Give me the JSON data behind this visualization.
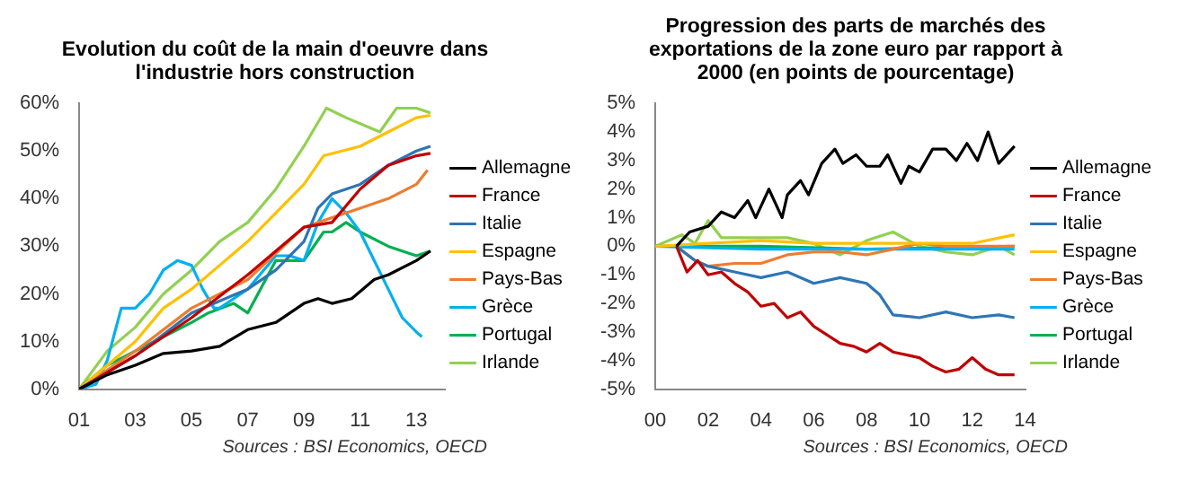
{
  "chart_data": [
    {
      "type": "line",
      "title": "Evolution du coût de la main d'oeuvre dans l'industrie hors construction",
      "annotations": [
        "Sources : BSI Economics, OECD"
      ],
      "legend": "right",
      "marker": "none",
      "grid": false,
      "xlim": [
        2001,
        2014
      ],
      "xticks": [
        {
          "value": 2001,
          "label": "01"
        },
        {
          "value": 2003,
          "label": "03"
        },
        {
          "value": 2005,
          "label": "05"
        },
        {
          "value": 2007,
          "label": "07"
        },
        {
          "value": 2009,
          "label": "09"
        },
        {
          "value": 2011,
          "label": "11"
        },
        {
          "value": 2013,
          "label": "13"
        }
      ],
      "ylim": [
        0,
        60
      ],
      "yticks": [
        {
          "value": 0,
          "label": "0%"
        },
        {
          "value": 10,
          "label": "10%"
        },
        {
          "value": 20,
          "label": "20%"
        },
        {
          "value": 30,
          "label": "30%"
        },
        {
          "value": 40,
          "label": "40%"
        },
        {
          "value": 50,
          "label": "50%"
        },
        {
          "value": 60,
          "label": "60%"
        }
      ],
      "series": [
        {
          "name": "Allemagne",
          "color": "#000000",
          "x": [
            2001,
            2002,
            2003,
            2004,
            2005,
            2006,
            2007,
            2008,
            2009,
            2009.5,
            2010,
            2010.7,
            2011.5,
            2012,
            2013,
            2013.5
          ],
          "values": [
            0,
            3,
            5,
            7.5,
            8,
            9,
            12.5,
            14,
            18,
            19,
            18,
            19,
            23,
            24,
            27,
            29
          ]
        },
        {
          "name": "France",
          "color": "#c00000",
          "x": [
            2001,
            2003,
            2005,
            2007,
            2009,
            2010,
            2011,
            2012,
            2013,
            2013.5
          ],
          "values": [
            0,
            7,
            15,
            24,
            34,
            35,
            42,
            47,
            49,
            49.5
          ]
        },
        {
          "name": "Italie",
          "color": "#2e75b6",
          "x": [
            2001,
            2003,
            2005,
            2007,
            2008,
            2009,
            2009.5,
            2010,
            2011,
            2012,
            2013,
            2013.5
          ],
          "values": [
            0,
            7,
            16,
            21,
            25,
            31,
            38,
            41,
            43,
            47,
            50,
            51
          ]
        },
        {
          "name": "Espagne",
          "color": "#ffc000",
          "x": [
            2001,
            2003,
            2004,
            2005,
            2007,
            2009,
            2009.7,
            2011,
            2012,
            2013,
            2013.5
          ],
          "values": [
            0,
            10,
            17,
            21,
            31,
            43,
            49,
            51,
            54,
            57,
            57.5
          ]
        },
        {
          "name": "Pays-Bas",
          "color": "#ed7d31",
          "x": [
            2001,
            2003,
            2005,
            2007,
            2009,
            2010,
            2011,
            2012,
            2013,
            2013.4
          ],
          "values": [
            0,
            8,
            17,
            23,
            34,
            36,
            38,
            40,
            43,
            46
          ]
        },
        {
          "name": "Grèce",
          "color": "#00b0f0",
          "x": [
            2001,
            2001.6,
            2002,
            2002.5,
            2003,
            2003.5,
            2004,
            2004.5,
            2005,
            2005.4,
            2005.8,
            2006,
            2007,
            2008,
            2008.5,
            2009,
            2009.5,
            2010,
            2010.5,
            2011,
            2011.5,
            2012,
            2012.5,
            2013,
            2013.2
          ],
          "values": [
            0,
            1,
            6,
            17,
            17,
            20,
            25,
            27,
            26,
            21,
            17,
            17,
            21,
            28,
            28,
            27,
            35,
            40,
            37,
            33,
            27,
            21,
            15,
            12,
            11
          ]
        },
        {
          "name": "Portugal",
          "color": "#00b050",
          "x": [
            2001,
            2002,
            2003,
            2004,
            2005,
            2005.6,
            2006.5,
            2007,
            2008,
            2009,
            2009.7,
            2010,
            2010.5,
            2011,
            2012,
            2013,
            2013.5
          ],
          "values": [
            0,
            5,
            8,
            11,
            14,
            16,
            18,
            16,
            27,
            27,
            33,
            33,
            35,
            33,
            30,
            28,
            29
          ]
        },
        {
          "name": "Irlande",
          "color": "#92d050",
          "x": [
            2001,
            2002,
            2003,
            2004,
            2005,
            2006,
            2007,
            2008,
            2009,
            2009.8,
            2010.5,
            2011.3,
            2011.7,
            2012.3,
            2013,
            2013.5
          ],
          "values": [
            0,
            8,
            13,
            20,
            25,
            31,
            35,
            42,
            51,
            59,
            57,
            55,
            54,
            59,
            59,
            58
          ]
        }
      ]
    },
    {
      "type": "line",
      "title": "Progression des parts de marchés des exportations de la zone euro par rapport à 2000 (en points de pourcentage)",
      "annotations": [
        "Sources : BSI Economics, OECD"
      ],
      "legend": "right",
      "marker": "none",
      "grid": false,
      "xlim": [
        2000,
        2014
      ],
      "xticks": [
        {
          "value": 2000,
          "label": "00"
        },
        {
          "value": 2002,
          "label": "02"
        },
        {
          "value": 2004,
          "label": "04"
        },
        {
          "value": 2006,
          "label": "06"
        },
        {
          "value": 2008,
          "label": "08"
        },
        {
          "value": 2010,
          "label": "10"
        },
        {
          "value": 2012,
          "label": "12"
        },
        {
          "value": 2014,
          "label": "14"
        }
      ],
      "ylim": [
        -5,
        5
      ],
      "yticks": [
        {
          "value": -5,
          "label": "-5%"
        },
        {
          "value": -4,
          "label": "-4%"
        },
        {
          "value": -3,
          "label": "-3%"
        },
        {
          "value": -2,
          "label": "-2%"
        },
        {
          "value": -1,
          "label": "-1%"
        },
        {
          "value": 0,
          "label": "0%"
        },
        {
          "value": 1,
          "label": "1%"
        },
        {
          "value": 2,
          "label": "2%"
        },
        {
          "value": 3,
          "label": "3%"
        },
        {
          "value": 4,
          "label": "4%"
        },
        {
          "value": 5,
          "label": "5%"
        }
      ],
      "series": [
        {
          "name": "Allemagne",
          "color": "#000000",
          "x": [
            2000.8,
            2001.3,
            2002,
            2002.5,
            2003,
            2003.5,
            2003.8,
            2004.3,
            2004.8,
            2005,
            2005.5,
            2005.8,
            2006.3,
            2006.8,
            2007.1,
            2007.6,
            2008,
            2008.5,
            2008.8,
            2009.3,
            2009.6,
            2010,
            2010.5,
            2011,
            2011.4,
            2011.8,
            2012.2,
            2012.6,
            2013,
            2013.6
          ],
          "values": [
            0,
            0.5,
            0.7,
            1.2,
            1,
            1.6,
            1,
            2,
            1,
            1.8,
            2.3,
            1.8,
            2.9,
            3.4,
            2.9,
            3.2,
            2.8,
            2.8,
            3.2,
            2.2,
            2.8,
            2.6,
            3.4,
            3.4,
            3,
            3.6,
            3,
            4,
            2.9,
            3.5
          ]
        },
        {
          "name": "France",
          "color": "#c00000",
          "x": [
            2000.8,
            2001.2,
            2001.6,
            2002,
            2002.5,
            2003,
            2003.5,
            2004,
            2004.5,
            2005,
            2005.5,
            2006,
            2007,
            2007.5,
            2008,
            2008.5,
            2009,
            2010,
            2010.5,
            2011,
            2011.5,
            2012,
            2012.5,
            2013,
            2013.6
          ],
          "values": [
            0,
            -0.9,
            -0.5,
            -1,
            -0.9,
            -1.3,
            -1.6,
            -2.1,
            -2,
            -2.5,
            -2.3,
            -2.8,
            -3.4,
            -3.5,
            -3.7,
            -3.4,
            -3.7,
            -3.9,
            -4.2,
            -4.4,
            -4.3,
            -3.9,
            -4.3,
            -4.5,
            -4.5
          ]
        },
        {
          "name": "Italie",
          "color": "#2e75b6",
          "x": [
            2000.8,
            2001.5,
            2002,
            2003,
            2004,
            2005,
            2006,
            2007,
            2008,
            2008.5,
            2009,
            2010,
            2011,
            2012,
            2013,
            2013.6
          ],
          "values": [
            0,
            -0.5,
            -0.7,
            -0.9,
            -1.1,
            -0.9,
            -1.3,
            -1.1,
            -1.3,
            -1.7,
            -2.4,
            -2.5,
            -2.3,
            -2.5,
            -2.4,
            -2.5
          ]
        },
        {
          "name": "Espagne",
          "color": "#ffc000",
          "x": [
            2000,
            2002,
            2004,
            2006,
            2008,
            2010,
            2012,
            2013.6
          ],
          "values": [
            0,
            0.1,
            0.2,
            0.1,
            0.1,
            0.1,
            0.1,
            0.4
          ]
        },
        {
          "name": "Pays-Bas",
          "color": "#ed7d31",
          "x": [
            2000.8,
            2001.5,
            2002,
            2003,
            2004,
            2005,
            2006,
            2007,
            2008,
            2009,
            2010,
            2011,
            2012,
            2013.6
          ],
          "values": [
            0,
            -0.5,
            -0.7,
            -0.6,
            -0.6,
            -0.3,
            -0.2,
            -0.2,
            -0.3,
            -0.1,
            0.1,
            0,
            0,
            0
          ]
        },
        {
          "name": "Grèce",
          "color": "#00b0f0",
          "x": [
            2000,
            2004,
            2008,
            2012,
            2013.6
          ],
          "values": [
            0,
            -0.1,
            -0.1,
            -0.1,
            -0.1
          ]
        },
        {
          "name": "Portugal",
          "color": "#00b050",
          "x": [
            2000,
            2004,
            2008,
            2013.6
          ],
          "values": [
            0,
            0,
            -0.1,
            0
          ]
        },
        {
          "name": "Irlande",
          "color": "#92d050",
          "x": [
            2000,
            2001,
            2001.5,
            2002,
            2002.5,
            2004,
            2005,
            2006,
            2007,
            2008,
            2009,
            2010,
            2011,
            2012,
            2013,
            2013.6
          ],
          "values": [
            0,
            0.4,
            0.1,
            0.9,
            0.3,
            0.3,
            0.3,
            0.1,
            -0.3,
            0.2,
            0.5,
            0,
            -0.2,
            -0.3,
            0,
            -0.3
          ]
        }
      ]
    }
  ]
}
